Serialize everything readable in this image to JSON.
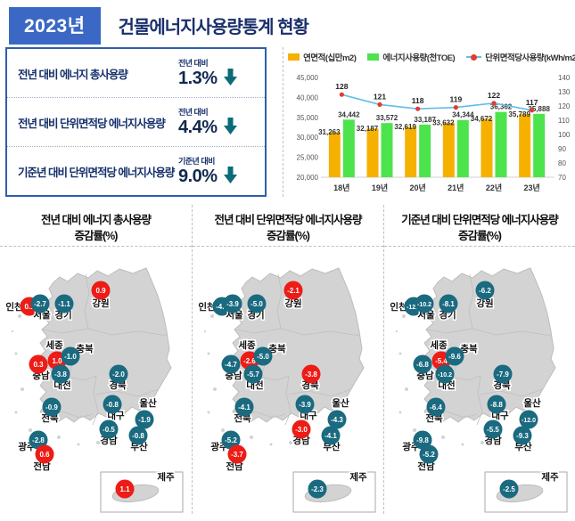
{
  "header": {
    "year_badge": "2023년",
    "title": "건물에너지사용량통계 현황"
  },
  "summary": {
    "rows": [
      {
        "label": "전년 대비 에너지 총사용량",
        "sub": "전년 대비",
        "value": "1.3%",
        "direction": "down"
      },
      {
        "label": "전년 대비 단위면적당 에너지사용량",
        "sub": "전년 대비",
        "value": "4.4%",
        "direction": "down"
      },
      {
        "label": "기준년 대비 단위면적당 에너지사용량",
        "sub": "기준년 대비",
        "value": "9.0%",
        "direction": "down"
      }
    ]
  },
  "chart_data": {
    "type": "bar+line",
    "categories": [
      "18년",
      "19년",
      "20년",
      "21년",
      "22년",
      "23년"
    ],
    "series": [
      {
        "name": "연면적(십만m2)",
        "type": "bar",
        "values": [
          31263,
          32187,
          32619,
          33632,
          34672,
          35789
        ]
      },
      {
        "name": "에너지사용량(천TOE)",
        "type": "bar",
        "values": [
          34442,
          33572,
          33187,
          34344,
          36362,
          35888
        ]
      },
      {
        "name": "단위면적당사용량(kWh/m2)",
        "type": "line",
        "values": [
          128,
          121,
          118,
          119,
          122,
          117
        ]
      }
    ],
    "bar_labels": [
      [
        "31,263",
        "32,187",
        "32,619",
        "33,632",
        "34,672",
        "35,789"
      ],
      [
        "34,442",
        "33,572",
        "33,187",
        "34,344",
        "36,362",
        "35,888"
      ]
    ],
    "line_labels": [
      "128",
      "121",
      "118",
      "119",
      "122",
      "117"
    ],
    "left_axis": {
      "min": 20000,
      "max": 45000,
      "ticks": [
        "45,000",
        "40,000",
        "35,000",
        "30,000",
        "25,000",
        "20,000"
      ]
    },
    "right_axis": {
      "min": 70,
      "max": 140,
      "ticks": [
        "140",
        "130",
        "120",
        "110",
        "100",
        "90",
        "80",
        "70"
      ]
    },
    "legend_position": "top",
    "grid": false
  },
  "maps": [
    {
      "title_line1": "전년 대비 에너지 총사용량",
      "title_line2": "증감률(%)",
      "regions": [
        {
          "name": "인천",
          "value": "0.1",
          "color": "red"
        },
        {
          "name": "서울",
          "value": "-2.7",
          "color": "teal"
        },
        {
          "name": "경기",
          "value": "-1.1",
          "color": "teal"
        },
        {
          "name": "강원",
          "value": "0.9",
          "color": "red"
        },
        {
          "name": "세종",
          "value": "1.0",
          "color": "red"
        },
        {
          "name": "충북",
          "value": "-1.0",
          "color": "teal"
        },
        {
          "name": "충남",
          "value": "0.3",
          "color": "red"
        },
        {
          "name": "대전",
          "value": "-3.8",
          "color": "teal"
        },
        {
          "name": "경북",
          "value": "-2.0",
          "color": "teal"
        },
        {
          "name": "전북",
          "value": "-0.9",
          "color": "teal"
        },
        {
          "name": "대구",
          "value": "-0.8",
          "color": "teal"
        },
        {
          "name": "울산",
          "value": "-1.9",
          "color": "teal"
        },
        {
          "name": "경남",
          "value": "-0.5",
          "color": "teal"
        },
        {
          "name": "부산",
          "value": "-0.8",
          "color": "teal"
        },
        {
          "name": "광주",
          "value": "-2.8",
          "color": "teal"
        },
        {
          "name": "전남",
          "value": "0.6",
          "color": "red"
        },
        {
          "name": "제주",
          "value": "1.1",
          "color": "red"
        }
      ]
    },
    {
      "title_line1": "전년 대비 단위면적당 에너지사용량",
      "title_line2": "증감률(%)",
      "regions": [
        {
          "name": "인천",
          "value": "-4.7",
          "color": "teal"
        },
        {
          "name": "서울",
          "value": "-3.9",
          "color": "teal"
        },
        {
          "name": "경기",
          "value": "-5.0",
          "color": "teal"
        },
        {
          "name": "강원",
          "value": "-2.1",
          "color": "red"
        },
        {
          "name": "세종",
          "value": "-2.6",
          "color": "red"
        },
        {
          "name": "충북",
          "value": "-5.0",
          "color": "teal"
        },
        {
          "name": "충남",
          "value": "-4.7",
          "color": "teal"
        },
        {
          "name": "대전",
          "value": "-5.7",
          "color": "teal"
        },
        {
          "name": "경북",
          "value": "-3.8",
          "color": "red"
        },
        {
          "name": "전북",
          "value": "-4.1",
          "color": "teal"
        },
        {
          "name": "대구",
          "value": "-3.9",
          "color": "teal"
        },
        {
          "name": "울산",
          "value": "-4.3",
          "color": "teal"
        },
        {
          "name": "경남",
          "value": "-3.0",
          "color": "red"
        },
        {
          "name": "부산",
          "value": "-4.1",
          "color": "teal"
        },
        {
          "name": "광주",
          "value": "-5.2",
          "color": "teal"
        },
        {
          "name": "전남",
          "value": "-3.7",
          "color": "red"
        },
        {
          "name": "제주",
          "value": "-2.3",
          "color": "teal"
        }
      ]
    },
    {
      "title_line1": "기준년 대비 단위면적당 에너지사용량",
      "title_line2": "증감률(%)",
      "regions": [
        {
          "name": "인천",
          "value": "-12.0",
          "color": "teal"
        },
        {
          "name": "서울",
          "value": "-10.2",
          "color": "teal"
        },
        {
          "name": "경기",
          "value": "-8.1",
          "color": "teal"
        },
        {
          "name": "강원",
          "value": "-6.2",
          "color": "teal"
        },
        {
          "name": "세종",
          "value": "-5.4",
          "color": "red"
        },
        {
          "name": "충북",
          "value": "-9.6",
          "color": "teal"
        },
        {
          "name": "충남",
          "value": "-6.8",
          "color": "teal"
        },
        {
          "name": "대전",
          "value": "-10.2",
          "color": "teal"
        },
        {
          "name": "경북",
          "value": "-7.9",
          "color": "teal"
        },
        {
          "name": "전북",
          "value": "-6.4",
          "color": "teal"
        },
        {
          "name": "대구",
          "value": "-8.8",
          "color": "teal"
        },
        {
          "name": "울산",
          "value": "-12.0",
          "color": "teal"
        },
        {
          "name": "경남",
          "value": "-5.5",
          "color": "teal"
        },
        {
          "name": "부산",
          "value": "-9.3",
          "color": "teal"
        },
        {
          "name": "광주",
          "value": "-9.8",
          "color": "teal"
        },
        {
          "name": "전남",
          "value": "-5.2",
          "color": "teal"
        },
        {
          "name": "제주",
          "value": "-2.5",
          "color": "teal"
        }
      ]
    }
  ],
  "colors": {
    "badge_bg": "#3B68C5",
    "navy": "#16306B",
    "arrow_teal": "#0B6B7A",
    "bar_orange": "#F6B100",
    "bar_green": "#4DE34D",
    "line_blue": "#63BCE8",
    "marker_red": "#E23C30",
    "badge_teal": "#1A6A80",
    "badge_red": "#ED1C16",
    "land_gray": "#D3D3D3"
  }
}
